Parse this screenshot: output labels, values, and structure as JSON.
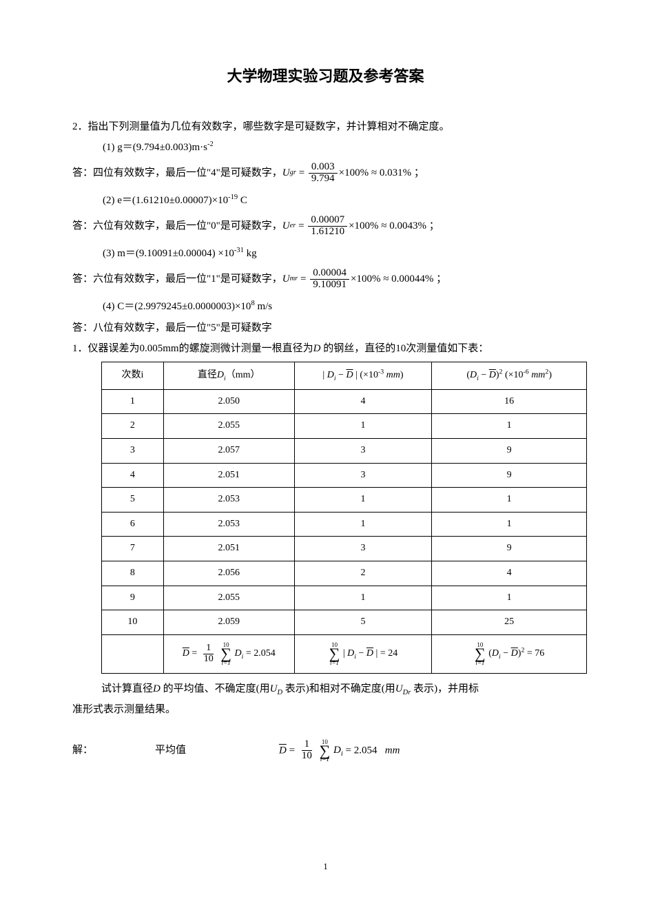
{
  "title": "大学物理实验习题及参考答案",
  "q2_intro": "2．指出下列测量值为几位有效数字，哪些数字是可疑数字，并计算相对不确定度。",
  "q2_1": "(1) g＝(9.794±0.003)m·s",
  "q2_1_exp": "-2",
  "ans1_pre": "答：四位有效数字，最后一位\"4\"是可疑数字，",
  "ans1_sym": "U",
  "ans1_sub": "gr",
  "ans1_num": "0.003",
  "ans1_den": "9.794",
  "ans1_tail": "×100% ≈ 0.031% ；",
  "q2_2": "(2) e＝(1.61210±0.00007)×10",
  "q2_2_exp": "-19",
  "q2_2_unit": " C",
  "ans2_pre": "答：六位有效数字，最后一位\"0\"是可疑数字，",
  "ans2_sub": "er",
  "ans2_num": "0.00007",
  "ans2_den": "1.61210",
  "ans2_tail": "×100% ≈ 0.0043% ；",
  "q2_3": "(3) m＝(9.10091±0.00004) ×10",
  "q2_3_exp": "-31",
  "q2_3_unit": " kg",
  "ans3_pre": "答：六位有效数字，最后一位\"1\"是可疑数字，",
  "ans3_sub": "mr",
  "ans3_num": "0.00004",
  "ans3_den": "9.10091",
  "ans3_tail": "×100% ≈ 0.00044% ；",
  "q2_4": "(4) C＝(2.9979245±0.0000003)×10",
  "q2_4_exp": "8",
  "q2_4_unit": " m/s",
  "ans4": "答：八位有效数字，最后一位\"5\"是可疑数字",
  "q1_intro_a": "1．仪器误差为0.005mm的螺旋测微计测量一根直径为",
  "q1_intro_b": " 的钢丝，直径的10次测量值如下表：",
  "th1": "次数i",
  "th2_a": "直径",
  "th2_b": "（mm）",
  "th3_unit": "mm",
  "th4_unit": "mm",
  "rows": [
    {
      "i": "1",
      "d": "2.050",
      "dev": "4",
      "sq": "16"
    },
    {
      "i": "2",
      "d": "2.055",
      "dev": "1",
      "sq": "1"
    },
    {
      "i": "3",
      "d": "2.057",
      "dev": "3",
      "sq": "9"
    },
    {
      "i": "4",
      "d": "2.051",
      "dev": "3",
      "sq": "9"
    },
    {
      "i": "5",
      "d": "2.053",
      "dev": "1",
      "sq": "1"
    },
    {
      "i": "6",
      "d": "2.053",
      "dev": "1",
      "sq": "1"
    },
    {
      "i": "7",
      "d": "2.051",
      "dev": "3",
      "sq": "9"
    },
    {
      "i": "8",
      "d": "2.056",
      "dev": "2",
      "sq": "4"
    },
    {
      "i": "9",
      "d": "2.055",
      "dev": "1",
      "sq": "1"
    },
    {
      "i": "10",
      "d": "2.059",
      "dev": "5",
      "sq": "25"
    }
  ],
  "sum_mean": " = 2.054",
  "sum_dev": " = 24",
  "sum_sq": " = 76",
  "after1_a": "试计算直径",
  "after1_b": " 的平均值、不确定度(用",
  "after1_c": " 表示)和相对不确定度(用",
  "after1_d": " 表示)，并用标",
  "after2": "准形式表示测量结果。",
  "sol_label": "解：",
  "sol_mean_label": "平均值",
  "sol_mean_val": " = 2.054",
  "sol_mean_unit": "mm",
  "page": "1"
}
